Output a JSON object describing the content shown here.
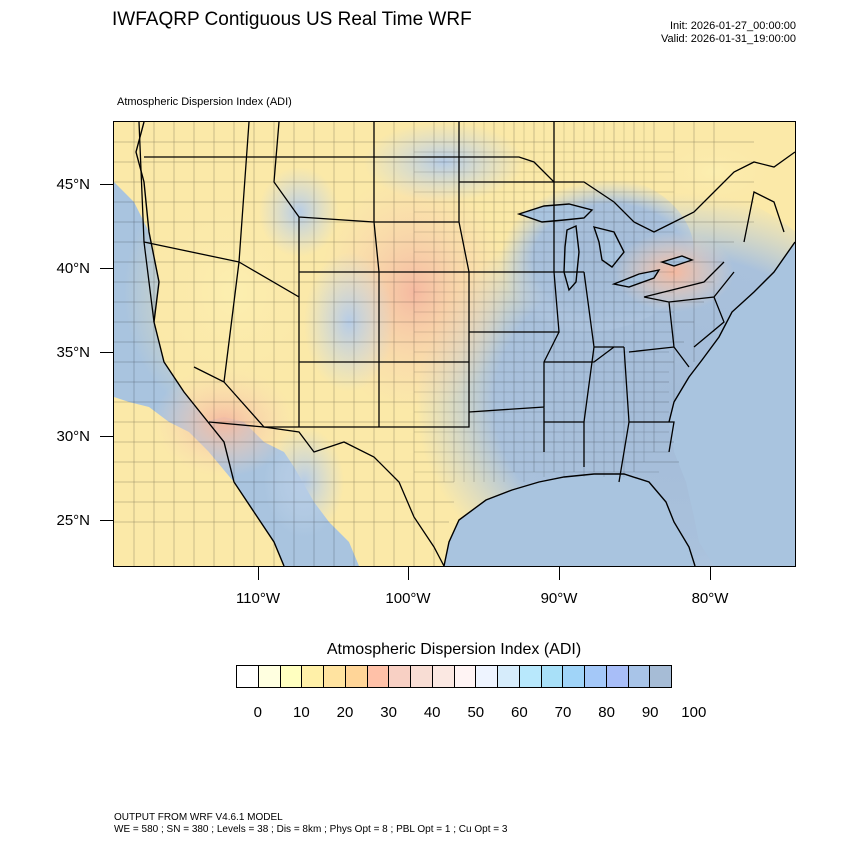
{
  "header": {
    "title": "IWFAQRP Contiguous US Real Time WRF",
    "init": "Init: 2026-01-27_00:00:00",
    "valid": "Valid: 2026-01-31_19:00:00"
  },
  "field_label": "Atmospheric Dispersion Index   (ADI)",
  "map": {
    "latitude_labels": [
      "45°N",
      "40°N",
      "35°N",
      "30°N",
      "25°N"
    ],
    "longitude_labels": [
      "110°W",
      "100°W",
      "90°W",
      "80°W"
    ],
    "colors": {
      "ocean": "#a9c4df",
      "land_low": "#fbe9a8",
      "land_mid": "#f6c7b4",
      "land_high": "#9fb9d5",
      "border": "#000000"
    }
  },
  "legend": {
    "title": "Atmospheric Dispersion Index  (ADI)",
    "labels": [
      "0",
      "10",
      "20",
      "30",
      "40",
      "50",
      "60",
      "70",
      "80",
      "90",
      "100"
    ],
    "colors": [
      "#ffffff",
      "#ffffe0",
      "#ffffc0",
      "#fff0a8",
      "#ffe3a0",
      "#ffd598",
      "#ffc1a8",
      "#f8d0c4",
      "#f8ddd4",
      "#fbe8e2",
      "#fff4f4",
      "#eef4ff",
      "#d6ecfb",
      "#b8e8fc",
      "#a8e0f8",
      "#a0d4f8",
      "#a4c8f8",
      "#a8bef8",
      "#a8c4e8",
      "#a6bcd6"
    ]
  },
  "footer": {
    "line1": "OUTPUT FROM WRF V4.6.1 MODEL",
    "line2": "WE = 580 ; SN = 380 ; Levels = 38 ; Dis = 8km ; Phys Opt = 8 ; PBL Opt = 1 ; Cu Opt = 3"
  }
}
